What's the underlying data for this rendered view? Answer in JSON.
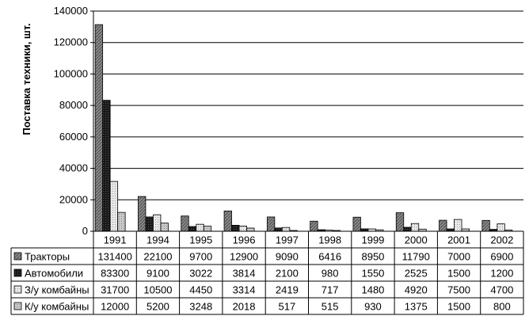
{
  "chart_data": {
    "type": "bar",
    "ylabel": "Поставка техники, шт.",
    "ylim": [
      0,
      140000
    ],
    "yticks": [
      "0",
      "20000",
      "40000",
      "60000",
      "80000",
      "100000",
      "120000",
      "140000"
    ],
    "categories": [
      "1991",
      "1994",
      "1995",
      "1996",
      "1997",
      "1998",
      "1999",
      "2000",
      "2001",
      "2002"
    ],
    "series": [
      {
        "name": "Тракторы",
        "pattern": "diag-gray",
        "values": [
          131400,
          22100,
          9700,
          12900,
          9090,
          6416,
          8950,
          11790,
          7000,
          6900
        ]
      },
      {
        "name": "Автомобили",
        "pattern": "dark",
        "values": [
          83300,
          9100,
          3022,
          3814,
          2100,
          980,
          1550,
          2525,
          1500,
          1200
        ]
      },
      {
        "name": "З/у комбайны",
        "pattern": "light-dots",
        "values": [
          31700,
          10500,
          4450,
          3314,
          2419,
          717,
          1480,
          4920,
          7500,
          4700
        ]
      },
      {
        "name": "К/у комбайны",
        "pattern": "light-gray",
        "values": [
          12000,
          5200,
          3248,
          2018,
          517,
          515,
          930,
          1375,
          1500,
          800
        ]
      }
    ],
    "data_table": true,
    "grid": true,
    "legend": "in-table-left"
  }
}
